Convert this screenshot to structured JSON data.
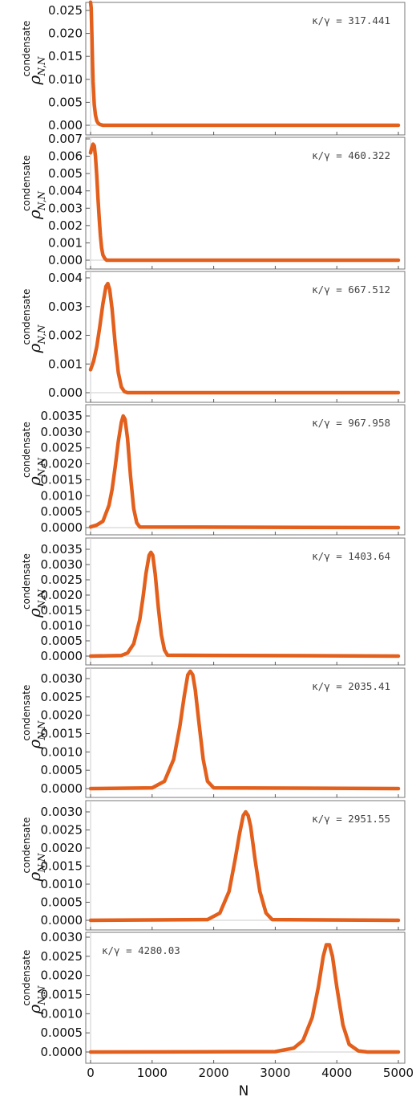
{
  "figure": {
    "xlabel": "N",
    "ylabel": {
      "main": "ρ",
      "superscript": "condensate",
      "subscript": "N,N"
    },
    "curve_color": "#e35f1c",
    "frame_color": "#777777",
    "axis_line_color": "#cccccc",
    "x_tick_labels": [
      "0",
      "1000",
      "2000",
      "3000",
      "4000",
      "5000"
    ]
  },
  "chart_data": [
    {
      "type": "line",
      "xlim": [
        0,
        5000
      ],
      "ylim": [
        0,
        0.026
      ],
      "yticks": [
        "0.000",
        "0.005",
        "0.010",
        "0.015",
        "0.020",
        "0.025"
      ],
      "annotation": "κ/γ = 317.441",
      "annotation_pos": "top-right",
      "x": [
        0,
        10,
        20,
        30,
        40,
        60,
        80,
        100,
        120,
        150,
        200,
        300,
        5000
      ],
      "y": [
        0.0268,
        0.0255,
        0.0205,
        0.0145,
        0.0095,
        0.0045,
        0.0022,
        0.001,
        0.0005,
        0.0002,
        0.0,
        0.0,
        0.0
      ]
    },
    {
      "type": "line",
      "xlim": [
        0,
        5000
      ],
      "ylim": [
        0,
        0.007
      ],
      "yticks": [
        "0.000",
        "0.001",
        "0.002",
        "0.003",
        "0.004",
        "0.005",
        "0.006",
        "0.007"
      ],
      "annotation": "κ/γ = 460.322",
      "annotation_pos": "top-right",
      "x": [
        0,
        20,
        40,
        60,
        80,
        100,
        120,
        140,
        160,
        180,
        200,
        230,
        260,
        300,
        5000
      ],
      "y": [
        0.0062,
        0.0065,
        0.0067,
        0.0066,
        0.006,
        0.0049,
        0.0036,
        0.0024,
        0.0014,
        0.0007,
        0.0003,
        0.0001,
        0.0,
        0.0,
        0.0
      ]
    },
    {
      "type": "line",
      "xlim": [
        0,
        5000
      ],
      "ylim": [
        0,
        0.004
      ],
      "yticks": [
        "0.000",
        "0.001",
        "0.002",
        "0.003",
        "0.004"
      ],
      "annotation": "κ/γ = 667.512",
      "annotation_pos": "top-right",
      "x": [
        0,
        50,
        100,
        150,
        200,
        250,
        280,
        310,
        350,
        400,
        450,
        500,
        550,
        600,
        5000
      ],
      "y": [
        0.0008,
        0.0011,
        0.0016,
        0.0023,
        0.0031,
        0.0037,
        0.0038,
        0.0036,
        0.0029,
        0.0017,
        0.0007,
        0.0002,
        4e-05,
        0.0,
        0.0
      ]
    },
    {
      "type": "line",
      "xlim": [
        0,
        5000
      ],
      "ylim": [
        0,
        0.0035
      ],
      "yticks": [
        "0.0000",
        "0.0005",
        "0.0010",
        "0.0015",
        "0.0020",
        "0.0025",
        "0.0030",
        "0.0035"
      ],
      "annotation": "κ/γ = 967.958",
      "annotation_pos": "top-right",
      "x": [
        0,
        100,
        200,
        300,
        350,
        400,
        450,
        500,
        530,
        560,
        600,
        650,
        700,
        750,
        800,
        5000
      ],
      "y": [
        2e-05,
        8e-05,
        0.0002,
        0.0007,
        0.0012,
        0.0019,
        0.0027,
        0.0033,
        0.0035,
        0.0034,
        0.0028,
        0.0016,
        0.0006,
        0.00015,
        2e-05,
        0.0
      ]
    },
    {
      "type": "line",
      "xlim": [
        0,
        5000
      ],
      "ylim": [
        0,
        0.0035
      ],
      "yticks": [
        "0.0000",
        "0.0005",
        "0.0010",
        "0.0015",
        "0.0020",
        "0.0025",
        "0.0030",
        "0.0035"
      ],
      "annotation": "κ/γ = 1403.64",
      "annotation_pos": "top-right",
      "x": [
        0,
        500,
        600,
        700,
        800,
        850,
        900,
        950,
        980,
        1010,
        1050,
        1100,
        1150,
        1200,
        1250,
        5000
      ],
      "y": [
        0.0,
        2e-05,
        0.0001,
        0.0004,
        0.0012,
        0.0019,
        0.0027,
        0.0033,
        0.0034,
        0.0033,
        0.0027,
        0.0016,
        0.0007,
        0.0002,
        3e-05,
        0.0
      ]
    },
    {
      "type": "line",
      "xlim": [
        0,
        5000
      ],
      "ylim": [
        0,
        0.0032
      ],
      "yticks": [
        "0.0000",
        "0.0005",
        "0.0010",
        "0.0015",
        "0.0020",
        "0.0025",
        "0.0030"
      ],
      "annotation": "κ/γ = 2035.41",
      "annotation_pos": "top-right",
      "x": [
        0,
        1000,
        1200,
        1350,
        1450,
        1520,
        1580,
        1620,
        1660,
        1700,
        1760,
        1830,
        1900,
        2000,
        5000
      ],
      "y": [
        0.0,
        2e-05,
        0.0002,
        0.0008,
        0.0017,
        0.0025,
        0.0031,
        0.0032,
        0.0031,
        0.0027,
        0.0018,
        0.0008,
        0.0002,
        2e-05,
        0.0
      ]
    },
    {
      "type": "line",
      "xlim": [
        0,
        5000
      ],
      "ylim": [
        0,
        0.0032
      ],
      "yticks": [
        "0.0000",
        "0.0005",
        "0.0010",
        "0.0015",
        "0.0020",
        "0.0025",
        "0.0030"
      ],
      "annotation": "κ/γ = 2951.55",
      "annotation_pos": "top-right",
      "x": [
        0,
        1900,
        2100,
        2250,
        2350,
        2420,
        2480,
        2520,
        2560,
        2600,
        2670,
        2750,
        2850,
        2950,
        5000
      ],
      "y": [
        0.0,
        2e-05,
        0.0002,
        0.0008,
        0.0017,
        0.0024,
        0.0029,
        0.003,
        0.0029,
        0.0026,
        0.0017,
        0.0008,
        0.0002,
        2e-05,
        0.0
      ]
    },
    {
      "type": "line",
      "xlim": [
        0,
        5000
      ],
      "ylim": [
        0,
        0.003
      ],
      "yticks": [
        "0.0000",
        "0.0005",
        "0.0010",
        "0.0015",
        "0.0020",
        "0.0025",
        "0.0030"
      ],
      "annotation": "κ/γ = 4280.03",
      "annotation_pos": "top-left",
      "x": [
        0,
        3000,
        3300,
        3450,
        3600,
        3700,
        3780,
        3830,
        3880,
        3930,
        4000,
        4100,
        4200,
        4350,
        4500,
        5000
      ],
      "y": [
        0.0,
        1e-05,
        0.0001,
        0.0003,
        0.0009,
        0.0017,
        0.0025,
        0.0028,
        0.0028,
        0.0025,
        0.0017,
        0.0007,
        0.0002,
        3e-05,
        0.0,
        0.0
      ]
    }
  ]
}
